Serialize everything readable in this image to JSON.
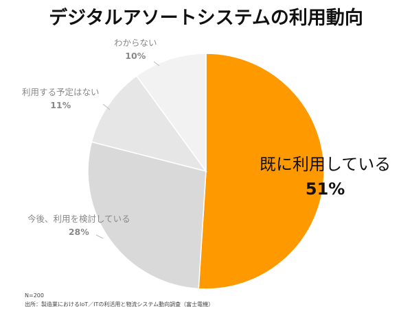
{
  "chart_data": {
    "type": "pie",
    "title": "デジタルアソートシステムの利用動向",
    "slices": [
      {
        "label": "既に利用している",
        "value": 51,
        "value_text": "51%",
        "color": "#ff9900"
      },
      {
        "label": "今後、利用を検討している",
        "value": 28,
        "value_text": "28%",
        "color": "#d9d9d9"
      },
      {
        "label": "利用する予定はない",
        "value": 11,
        "value_text": "11%",
        "color": "#e6e6e6"
      },
      {
        "label": "わからない",
        "value": 10,
        "value_text": "10%",
        "color": "#f2f2f2"
      }
    ],
    "start": "top",
    "direction": "clockwise"
  },
  "notes": {
    "sample": "N=200",
    "source": "出所：製造業におけるIoT／ITの利活用と物流システム動向調査（富士電機）"
  }
}
